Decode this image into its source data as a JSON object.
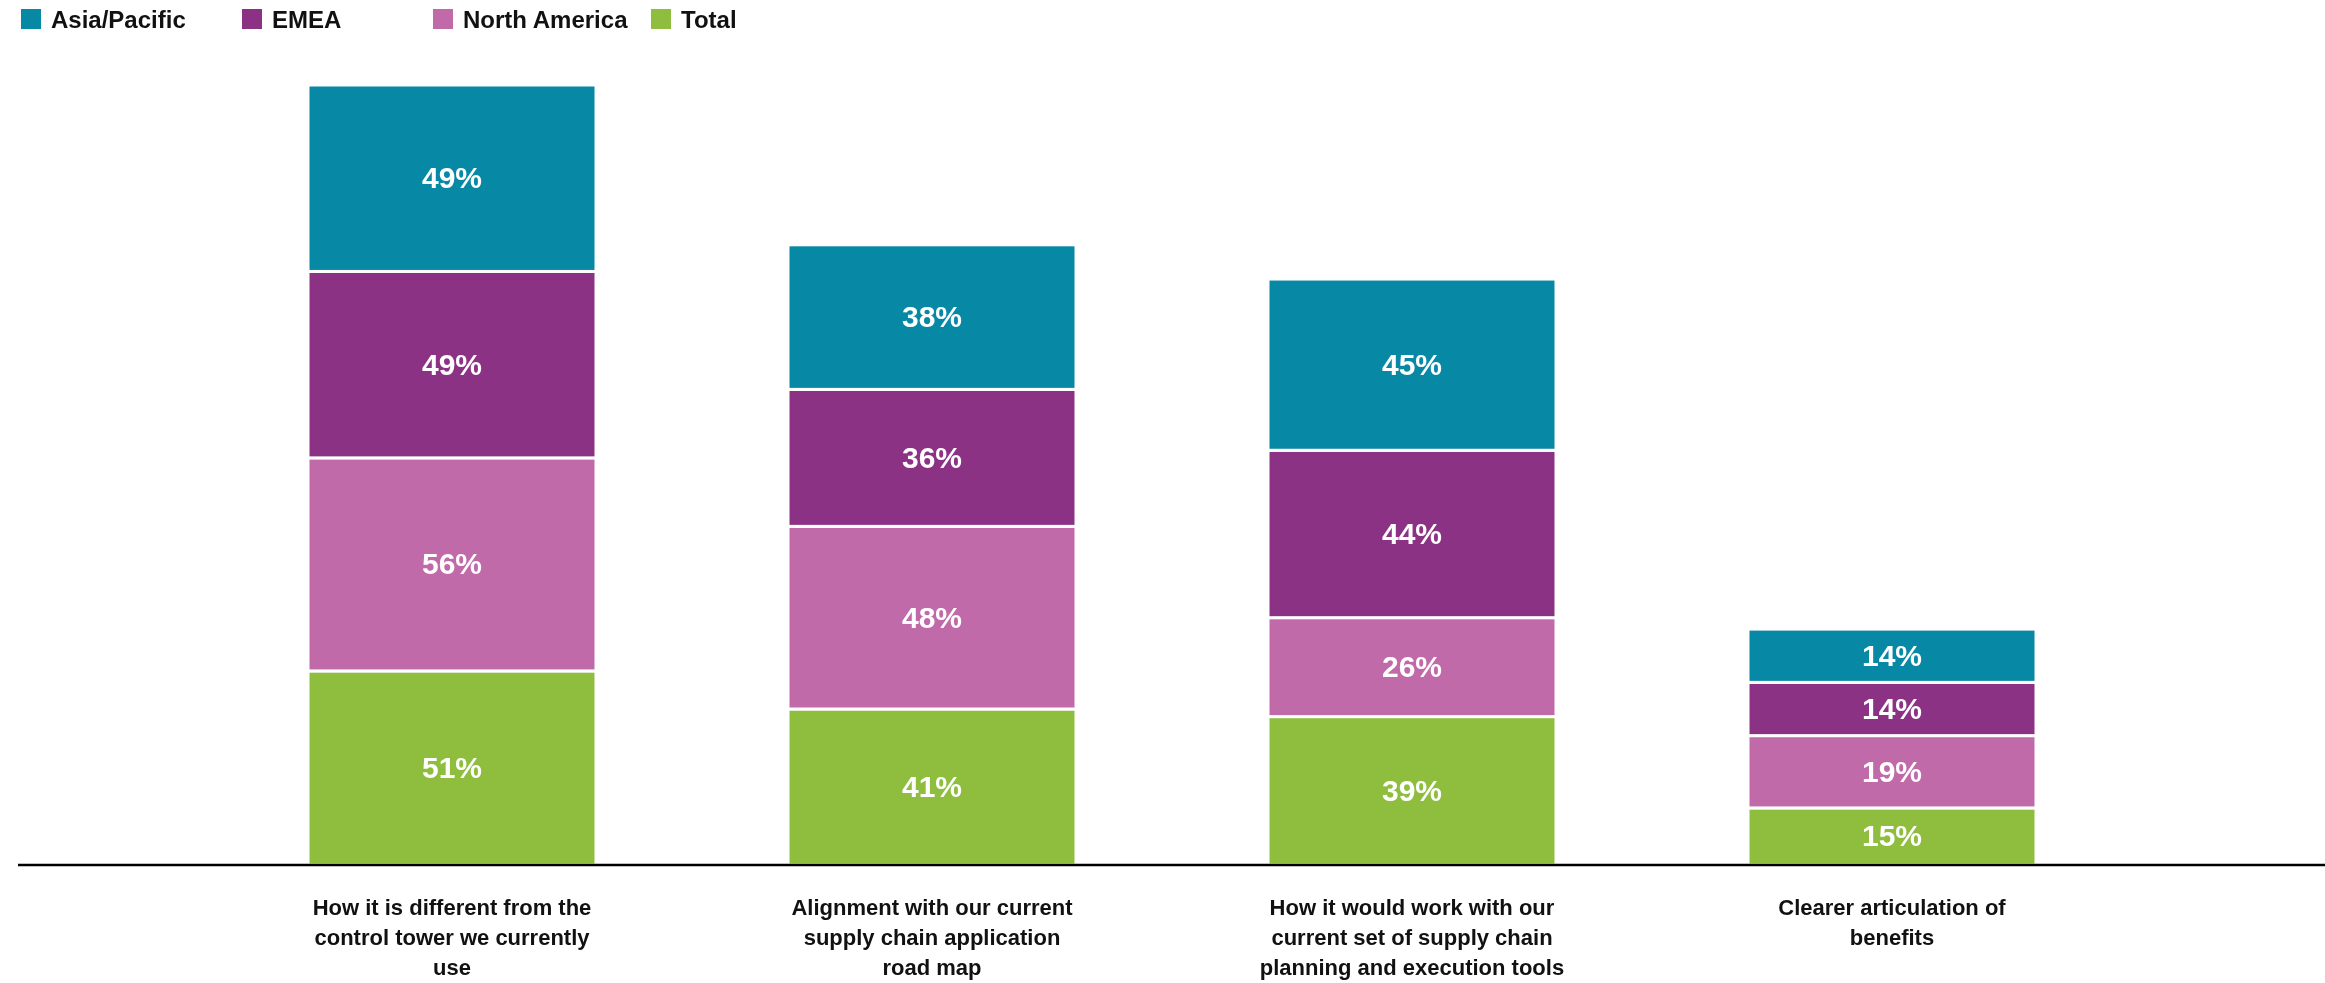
{
  "chart_data": {
    "type": "bar",
    "stacked": true,
    "legend": "top left",
    "categories": [
      "How it is different from the control tower we currently use",
      "Alignment with our current supply chain application road map",
      "How it would work with our current set of supply chain planning and execution tools",
      "Clearer articulation of benefits"
    ],
    "series": [
      {
        "name": "Total",
        "color": "#8fbe3f",
        "values": [
          51,
          41,
          39,
          15
        ],
        "value_labels": [
          "51%",
          "41%",
          "39%",
          "15%"
        ]
      },
      {
        "name": "North America",
        "color": "#c16aa9",
        "values": [
          56,
          48,
          26,
          19
        ],
        "value_labels": [
          "56%",
          "48%",
          "26%",
          "19%"
        ]
      },
      {
        "name": "EMEA",
        "color": "#8b3284",
        "values": [
          49,
          36,
          44,
          14
        ],
        "value_labels": [
          "49%",
          "36%",
          "44%",
          "14%"
        ]
      },
      {
        "name": "Asia/Pacific",
        "color": "#0789a5",
        "values": [
          49,
          38,
          45,
          14
        ],
        "value_labels": [
          "49%",
          "38%",
          "45%",
          "14%"
        ]
      }
    ]
  }
}
